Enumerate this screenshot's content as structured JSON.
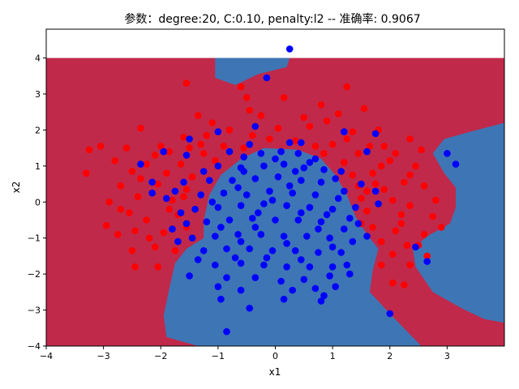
{
  "chart_data": {
    "type": "scatter",
    "title": "参数：degree:20, C:0.10, penalty:l2 -- 准确率: 0.9067",
    "xlabel": "x1",
    "ylabel": "x2",
    "xlim": [
      -4,
      4
    ],
    "ylim": [
      -4,
      4.8
    ],
    "x_ticks": [
      -4,
      -3,
      -2,
      -1,
      0,
      1,
      2,
      3
    ],
    "y_ticks": [
      -4,
      -3,
      -2,
      -1,
      0,
      1,
      2,
      3,
      4
    ],
    "grid": false,
    "colors": {
      "region_class_0": "#c0294a",
      "region_class_1": "#3e75b4",
      "points_class_0": "#ff0000",
      "points_class_1": "#0000ff"
    },
    "decision_region": {
      "background_class": 0,
      "y_extent": [
        -4,
        4
      ],
      "class_1_regions": [
        [
          [
            -1.05,
            4
          ],
          [
            0.25,
            4
          ],
          [
            0.2,
            3.75
          ],
          [
            -0.3,
            3.55
          ],
          [
            -0.7,
            3.25
          ],
          [
            -1.05,
            3.45
          ]
        ],
        [
          [
            -0.2,
            1.5
          ],
          [
            0.4,
            1.45
          ],
          [
            0.8,
            1.2
          ],
          [
            1.05,
            0.75
          ],
          [
            1.25,
            0.2
          ],
          [
            1.4,
            -0.4
          ],
          [
            1.6,
            -0.9
          ],
          [
            1.8,
            -1.3
          ],
          [
            1.7,
            -1.9
          ],
          [
            1.65,
            -2.5
          ],
          [
            2.0,
            -3.1
          ],
          [
            2.55,
            -4
          ],
          [
            -1.35,
            -4
          ],
          [
            -1.9,
            -3.75
          ],
          [
            -1.95,
            -3.15
          ],
          [
            -1.85,
            -2.4
          ],
          [
            -1.75,
            -1.7
          ],
          [
            -1.55,
            -1.3
          ],
          [
            -1.25,
            -1.0
          ],
          [
            -1.25,
            -0.5
          ],
          [
            -1.15,
            0.2
          ],
          [
            -0.95,
            0.75
          ],
          [
            -0.6,
            1.2
          ]
        ],
        [
          [
            4,
            2.2
          ],
          [
            3.4,
            1.95
          ],
          [
            2.95,
            1.75
          ],
          [
            2.75,
            1.35
          ],
          [
            2.95,
            0.8
          ],
          [
            3.15,
            0.4
          ],
          [
            3.15,
            -0.15
          ],
          [
            3.05,
            -0.6
          ],
          [
            2.65,
            -0.95
          ],
          [
            2.4,
            -1.3
          ],
          [
            2.45,
            -1.8
          ],
          [
            2.75,
            -2.5
          ],
          [
            3.25,
            -2.95
          ],
          [
            3.65,
            -3.25
          ],
          [
            4,
            -3.35
          ]
        ]
      ]
    },
    "series": [
      {
        "class": 0,
        "color": "#ff0000",
        "points": [
          [
            -1.55,
            3.3
          ],
          [
            -0.6,
            3.2
          ],
          [
            1.25,
            3.2
          ],
          [
            0.15,
            2.9
          ],
          [
            0.8,
            2.7
          ],
          [
            -0.45,
            2.55
          ],
          [
            1.55,
            2.6
          ],
          [
            -1.35,
            2.4
          ],
          [
            -0.25,
            2.4
          ],
          [
            0.5,
            2.35
          ],
          [
            1.1,
            2.45
          ],
          [
            -1.1,
            2.2
          ],
          [
            -2.35,
            2.05
          ],
          [
            -0.8,
            2.0
          ],
          [
            0.05,
            2.05
          ],
          [
            0.6,
            2.1
          ],
          [
            1.8,
            2.0
          ],
          [
            -1.6,
            1.8
          ],
          [
            -0.4,
            1.85
          ],
          [
            1.35,
            1.95
          ],
          [
            2.35,
            1.75
          ],
          [
            -2.6,
            1.5
          ],
          [
            -1.3,
            1.6
          ],
          [
            -0.9,
            1.55
          ],
          [
            1.0,
            1.6
          ],
          [
            1.65,
            1.55
          ],
          [
            2.55,
            1.45
          ],
          [
            -3.25,
            1.45
          ],
          [
            -3.05,
            1.55
          ],
          [
            -2.1,
            1.3
          ],
          [
            -1.85,
            1.4
          ],
          [
            -0.55,
            1.5
          ],
          [
            0.85,
            1.35
          ],
          [
            1.45,
            1.35
          ],
          [
            2.1,
            1.35
          ],
          [
            -2.25,
            1.05
          ],
          [
            -1.65,
            1.05
          ],
          [
            -1.05,
            1.15
          ],
          [
            1.2,
            1.1
          ],
          [
            1.85,
            1.0
          ],
          [
            2.45,
            1.0
          ],
          [
            -3.3,
            0.8
          ],
          [
            -2.5,
            0.85
          ],
          [
            -1.9,
            0.8
          ],
          [
            -1.45,
            0.7
          ],
          [
            1.35,
            0.75
          ],
          [
            1.7,
            0.8
          ],
          [
            2.25,
            0.55
          ],
          [
            -2.7,
            0.45
          ],
          [
            -2.05,
            0.5
          ],
          [
            -1.55,
            0.35
          ],
          [
            1.45,
            0.45
          ],
          [
            1.9,
            0.35
          ],
          [
            2.6,
            0.45
          ],
          [
            -2.9,
            0.0
          ],
          [
            -2.4,
            0.15
          ],
          [
            -1.8,
            0.05
          ],
          [
            1.5,
            0.1
          ],
          [
            2.05,
            0.05
          ],
          [
            2.35,
            -0.1
          ],
          [
            -2.55,
            -0.3
          ],
          [
            -2.25,
            -0.5
          ],
          [
            -1.7,
            -0.35
          ],
          [
            1.6,
            -0.25
          ],
          [
            2.2,
            -0.35
          ],
          [
            2.75,
            -0.4
          ],
          [
            -2.95,
            -0.65
          ],
          [
            -2.45,
            -0.8
          ],
          [
            -1.95,
            -0.85
          ],
          [
            1.7,
            -0.7
          ],
          [
            2.1,
            -0.8
          ],
          [
            2.6,
            -0.9
          ],
          [
            -2.75,
            -0.9
          ],
          [
            -2.2,
            -1.0
          ],
          [
            1.85,
            -1.1
          ],
          [
            2.3,
            -1.2
          ],
          [
            -2.5,
            -1.35
          ],
          [
            -1.75,
            -1.35
          ],
          [
            2.05,
            -1.45
          ],
          [
            2.65,
            -1.5
          ],
          [
            -2.45,
            -1.8
          ],
          [
            -2.05,
            -1.8
          ],
          [
            2.35,
            -1.75
          ],
          [
            2.05,
            -2.25
          ],
          [
            2.25,
            -2.3
          ],
          [
            -0.5,
            2.9
          ],
          [
            0.9,
            2.25
          ],
          [
            -1.2,
            1.85
          ],
          [
            -0.1,
            1.75
          ],
          [
            0.35,
            1.7
          ],
          [
            1.25,
            1.75
          ],
          [
            -1.5,
            1.5
          ],
          [
            0.7,
            1.55
          ],
          [
            1.9,
            1.55
          ],
          [
            -2.0,
            1.55
          ],
          [
            -2.8,
            1.15
          ],
          [
            -1.25,
            1.35
          ],
          [
            2.0,
            1.15
          ],
          [
            -2.35,
            0.65
          ],
          [
            2.35,
            0.75
          ],
          [
            -1.6,
            0.15
          ],
          [
            1.75,
            0.5
          ],
          [
            -2.7,
            -0.2
          ],
          [
            2.8,
            0.05
          ],
          [
            2.9,
            -0.7
          ],
          [
            -1.55,
            -0.7
          ],
          [
            1.5,
            -0.6
          ],
          [
            -2.1,
            -1.25
          ],
          [
            2.5,
            -1.2
          ],
          [
            1.85,
            -1.75
          ],
          [
            -1.85,
            -0.2
          ],
          [
            1.6,
            0.3
          ],
          [
            2.2,
            -0.6
          ]
        ]
      },
      {
        "class": 1,
        "color": "#0000ff",
        "points": [
          [
            0.25,
            4.25
          ],
          [
            -0.15,
            3.45
          ],
          [
            -1.0,
            1.95
          ],
          [
            1.2,
            1.95
          ],
          [
            -1.5,
            1.75
          ],
          [
            1.75,
            1.9
          ],
          [
            -0.35,
            2.1
          ],
          [
            0.45,
            1.65
          ],
          [
            -1.55,
            1.3
          ],
          [
            -1.95,
            1.4
          ],
          [
            -2.35,
            1.05
          ],
          [
            3.0,
            1.35
          ],
          [
            3.15,
            1.05
          ],
          [
            1.6,
            1.4
          ],
          [
            -2.15,
            0.55
          ],
          [
            -2.15,
            0.25
          ],
          [
            1.75,
            0.3
          ],
          [
            -1.9,
            0.1
          ],
          [
            1.8,
            -0.05
          ],
          [
            2.45,
            -1.25
          ],
          [
            2.65,
            -1.65
          ],
          [
            2.0,
            -3.1
          ],
          [
            -0.45,
            -2.95
          ],
          [
            -0.85,
            -3.6
          ],
          [
            0.8,
            -2.75
          ],
          [
            1.05,
            -2.35
          ],
          [
            -1.0,
            -2.35
          ],
          [
            0.15,
            -2.7
          ],
          [
            -0.7,
            -1.55
          ],
          [
            1.25,
            -1.75
          ],
          [
            -0.8,
            1.4
          ],
          [
            -0.55,
            1.25
          ],
          [
            -0.25,
            1.35
          ],
          [
            0.1,
            1.4
          ],
          [
            0.4,
            1.35
          ],
          [
            0.7,
            1.2
          ],
          [
            -1.0,
            1.0
          ],
          [
            -0.6,
            0.95
          ],
          [
            -0.2,
            1.0
          ],
          [
            0.15,
            1.05
          ],
          [
            0.5,
            0.95
          ],
          [
            0.85,
            0.9
          ],
          [
            1.05,
            0.65
          ],
          [
            -1.15,
            0.6
          ],
          [
            -0.75,
            0.6
          ],
          [
            -0.35,
            0.65
          ],
          [
            0.05,
            0.7
          ],
          [
            0.45,
            0.6
          ],
          [
            0.8,
            0.55
          ],
          [
            1.2,
            0.3
          ],
          [
            -1.3,
            0.2
          ],
          [
            -0.9,
            0.25
          ],
          [
            -0.5,
            0.2
          ],
          [
            -0.1,
            0.3
          ],
          [
            0.3,
            0.25
          ],
          [
            0.7,
            0.2
          ],
          [
            1.1,
            0.1
          ],
          [
            1.4,
            -0.15
          ],
          [
            -1.4,
            -0.2
          ],
          [
            -1.0,
            -0.15
          ],
          [
            -0.6,
            -0.1
          ],
          [
            -0.2,
            -0.05
          ],
          [
            0.2,
            -0.1
          ],
          [
            0.6,
            -0.15
          ],
          [
            1.0,
            -0.2
          ],
          [
            1.3,
            -0.45
          ],
          [
            -1.55,
            -0.6
          ],
          [
            -1.2,
            -0.55
          ],
          [
            -0.8,
            -0.5
          ],
          [
            -0.4,
            -0.45
          ],
          [
            0.0,
            -0.5
          ],
          [
            0.4,
            -0.5
          ],
          [
            0.8,
            -0.55
          ],
          [
            1.2,
            -0.75
          ],
          [
            -1.45,
            -1.0
          ],
          [
            -1.05,
            -0.95
          ],
          [
            -0.65,
            -0.9
          ],
          [
            -0.25,
            -0.9
          ],
          [
            0.15,
            -0.95
          ],
          [
            0.55,
            -0.95
          ],
          [
            0.95,
            -1.0
          ],
          [
            1.35,
            -1.1
          ],
          [
            -1.25,
            -1.35
          ],
          [
            -0.85,
            -1.3
          ],
          [
            -0.45,
            -1.3
          ],
          [
            -0.05,
            -1.35
          ],
          [
            0.35,
            -1.35
          ],
          [
            0.75,
            -1.4
          ],
          [
            1.15,
            -1.4
          ],
          [
            -1.05,
            -1.75
          ],
          [
            -0.6,
            -1.7
          ],
          [
            -0.2,
            -1.75
          ],
          [
            0.2,
            -1.8
          ],
          [
            0.6,
            -1.8
          ],
          [
            1.0,
            -1.8
          ],
          [
            -0.85,
            -2.1
          ],
          [
            -0.35,
            -2.1
          ],
          [
            0.1,
            -2.2
          ],
          [
            0.5,
            -2.15
          ],
          [
            0.95,
            -2.05
          ],
          [
            -0.6,
            -2.45
          ],
          [
            0.3,
            -2.45
          ],
          [
            0.7,
            -2.4
          ],
          [
            -0.3,
            -0.3
          ],
          [
            0.25,
            0.45
          ],
          [
            -0.65,
            0.4
          ],
          [
            0.9,
            -0.35
          ],
          [
            -1.1,
            0.0
          ],
          [
            0.6,
            1.1
          ],
          [
            -0.45,
            1.6
          ],
          [
            0.25,
            1.65
          ],
          [
            -1.65,
            -0.3
          ],
          [
            -1.6,
            0.55
          ],
          [
            1.5,
            0.5
          ],
          [
            1.45,
            -0.6
          ],
          [
            -1.35,
            -1.6
          ],
          [
            1.3,
            -2.0
          ],
          [
            -1.5,
            -2.05
          ],
          [
            0.0,
            1.2
          ],
          [
            -0.15,
            -1.55
          ],
          [
            0.45,
            -1.6
          ],
          [
            -0.95,
            -2.7
          ],
          [
            0.85,
            -2.6
          ],
          [
            -0.55,
            0.85
          ],
          [
            0.35,
            0.85
          ],
          [
            1.15,
            0.85
          ],
          [
            -1.25,
            0.85
          ],
          [
            -0.05,
            0.05
          ],
          [
            0.45,
            -0.3
          ],
          [
            -0.35,
            -0.7
          ],
          [
            0.75,
            -0.75
          ],
          [
            -0.95,
            -0.7
          ],
          [
            1.0,
            -1.25
          ],
          [
            -0.6,
            -1.1
          ],
          [
            0.2,
            -1.15
          ],
          [
            -1.7,
            -1.1
          ],
          [
            1.6,
            -0.95
          ],
          [
            -1.8,
            -0.75
          ],
          [
            -1.75,
            0.3
          ]
        ]
      }
    ]
  }
}
